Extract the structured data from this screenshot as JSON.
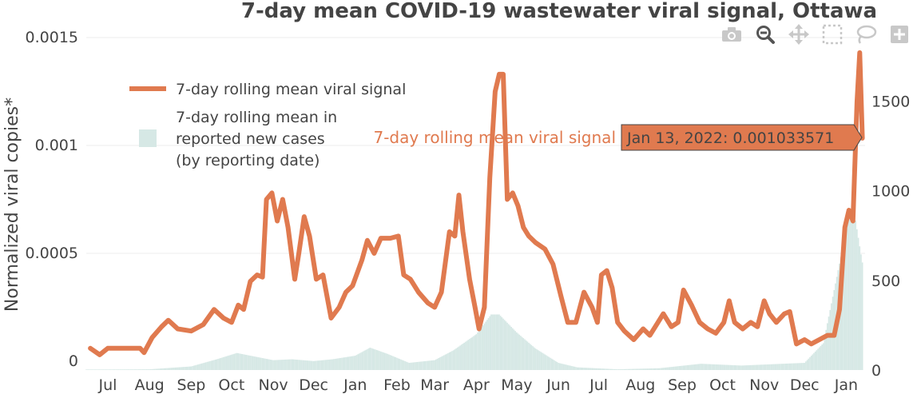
{
  "chart_data": {
    "type": "line",
    "title": "7-day mean COVID-19 wastewater viral signal, Ottawa",
    "ylabel": "Normalized viral copies*",
    "ylim": [
      0,
      0.0015
    ],
    "y_ticks": [
      "0",
      "0.0005",
      "0.001",
      "0.0015"
    ],
    "y_tick_values": [
      0,
      0.0005,
      0.001,
      0.0015
    ],
    "y2lim": [
      0,
      1850
    ],
    "y2_ticks": [
      "0",
      "500",
      "1000",
      "1500"
    ],
    "y2_tick_values": [
      0,
      500,
      1000,
      1500
    ],
    "x_ticks": [
      "Jul",
      "Aug",
      "Sep",
      "Oct",
      "Nov",
      "Dec",
      "Jan",
      "Feb",
      "Mar",
      "Apr",
      "May",
      "Jun",
      "Jul",
      "Aug",
      "Sep",
      "Oct",
      "Nov",
      "Dec",
      "Jan"
    ],
    "x_tick_dates": [
      "2020-07-01",
      "2020-08-01",
      "2020-09-01",
      "2020-10-01",
      "2020-11-01",
      "2020-12-01",
      "2021-01-01",
      "2021-02-01",
      "2021-03-01",
      "2021-04-01",
      "2021-05-01",
      "2021-06-01",
      "2021-07-01",
      "2021-08-01",
      "2021-09-01",
      "2021-10-01",
      "2021-11-01",
      "2021-12-01",
      "2022-01-01"
    ],
    "series": [
      {
        "name": "7-day rolling mean viral signal",
        "axis": "y",
        "color": "#e07a4f",
        "points": [
          [
            "2020-06-18",
            6e-05
          ],
          [
            "2020-06-25",
            3e-05
          ],
          [
            "2020-07-01",
            6e-05
          ],
          [
            "2020-07-15",
            6e-05
          ],
          [
            "2020-07-25",
            6e-05
          ],
          [
            "2020-07-28",
            4e-05
          ],
          [
            "2020-08-03",
            0.00011
          ],
          [
            "2020-08-10",
            0.00016
          ],
          [
            "2020-08-15",
            0.00019
          ],
          [
            "2020-08-22",
            0.00015
          ],
          [
            "2020-09-01",
            0.00014
          ],
          [
            "2020-09-10",
            0.00017
          ],
          [
            "2020-09-18",
            0.00024
          ],
          [
            "2020-09-25",
            0.0002
          ],
          [
            "2020-10-01",
            0.00018
          ],
          [
            "2020-10-06",
            0.00026
          ],
          [
            "2020-10-10",
            0.00024
          ],
          [
            "2020-10-15",
            0.00037
          ],
          [
            "2020-10-20",
            0.0004
          ],
          [
            "2020-10-24",
            0.00039
          ],
          [
            "2020-10-27",
            0.00075
          ],
          [
            "2020-10-31",
            0.00078
          ],
          [
            "2020-11-04",
            0.00065
          ],
          [
            "2020-11-08",
            0.00075
          ],
          [
            "2020-11-12",
            0.00062
          ],
          [
            "2020-11-17",
            0.00038
          ],
          [
            "2020-11-20",
            0.0005
          ],
          [
            "2020-11-24",
            0.00067
          ],
          [
            "2020-11-28",
            0.00058
          ],
          [
            "2020-12-03",
            0.00038
          ],
          [
            "2020-12-08",
            0.0004
          ],
          [
            "2020-12-14",
            0.0002
          ],
          [
            "2020-12-20",
            0.00025
          ],
          [
            "2020-12-25",
            0.00032
          ],
          [
            "2020-12-30",
            0.00035
          ],
          [
            "2021-01-06",
            0.00047
          ],
          [
            "2021-01-10",
            0.00056
          ],
          [
            "2021-01-15",
            0.0005
          ],
          [
            "2021-01-20",
            0.00057
          ],
          [
            "2021-01-27",
            0.00057
          ],
          [
            "2021-02-02",
            0.00058
          ],
          [
            "2021-02-06",
            0.0004
          ],
          [
            "2021-02-11",
            0.00038
          ],
          [
            "2021-02-17",
            0.00032
          ],
          [
            "2021-02-24",
            0.00027
          ],
          [
            "2021-03-01",
            0.00025
          ],
          [
            "2021-03-06",
            0.00032
          ],
          [
            "2021-03-12",
            0.0006
          ],
          [
            "2021-03-16",
            0.00058
          ],
          [
            "2021-03-19",
            0.00077
          ],
          [
            "2021-03-22",
            0.0006
          ],
          [
            "2021-03-27",
            0.00038
          ],
          [
            "2021-03-31",
            0.00025
          ],
          [
            "2021-04-03",
            0.00015
          ],
          [
            "2021-04-07",
            0.00025
          ],
          [
            "2021-04-11",
            0.00085
          ],
          [
            "2021-04-15",
            0.00125
          ],
          [
            "2021-04-18",
            0.00133
          ],
          [
            "2021-04-21",
            0.00133
          ],
          [
            "2021-04-24",
            0.00075
          ],
          [
            "2021-04-28",
            0.00078
          ],
          [
            "2021-05-02",
            0.00072
          ],
          [
            "2021-05-06",
            0.00062
          ],
          [
            "2021-05-10",
            0.00058
          ],
          [
            "2021-05-15",
            0.00055
          ],
          [
            "2021-05-22",
            0.00052
          ],
          [
            "2021-05-28",
            0.00045
          ],
          [
            "2021-06-03",
            0.0003
          ],
          [
            "2021-06-08",
            0.00018
          ],
          [
            "2021-06-14",
            0.00018
          ],
          [
            "2021-06-20",
            0.00032
          ],
          [
            "2021-06-26",
            0.00025
          ],
          [
            "2021-06-30",
            0.00018
          ],
          [
            "2021-07-03",
            0.0004
          ],
          [
            "2021-07-07",
            0.00042
          ],
          [
            "2021-07-11",
            0.00034
          ],
          [
            "2021-07-15",
            0.00018
          ],
          [
            "2021-07-20",
            0.00014
          ],
          [
            "2021-07-27",
            0.0001
          ],
          [
            "2021-08-03",
            0.00015
          ],
          [
            "2021-08-08",
            0.00012
          ],
          [
            "2021-08-14",
            0.00018
          ],
          [
            "2021-08-18",
            0.00022
          ],
          [
            "2021-08-24",
            0.00016
          ],
          [
            "2021-08-29",
            0.00018
          ],
          [
            "2021-09-02",
            0.00033
          ],
          [
            "2021-09-08",
            0.00026
          ],
          [
            "2021-09-14",
            0.00018
          ],
          [
            "2021-09-20",
            0.00015
          ],
          [
            "2021-09-26",
            0.00013
          ],
          [
            "2021-10-02",
            0.00018
          ],
          [
            "2021-10-06",
            0.00028
          ],
          [
            "2021-10-10",
            0.00018
          ],
          [
            "2021-10-16",
            0.00015
          ],
          [
            "2021-10-22",
            0.00018
          ],
          [
            "2021-10-27",
            0.00016
          ],
          [
            "2021-11-01",
            0.00028
          ],
          [
            "2021-11-05",
            0.00022
          ],
          [
            "2021-11-10",
            0.00018
          ],
          [
            "2021-11-16",
            0.00022
          ],
          [
            "2021-11-20",
            0.00023
          ],
          [
            "2021-11-25",
            8e-05
          ],
          [
            "2021-12-01",
            0.0001
          ],
          [
            "2021-12-06",
            8e-05
          ],
          [
            "2021-12-12",
            0.0001
          ],
          [
            "2021-12-18",
            0.00012
          ],
          [
            "2021-12-23",
            0.00012
          ],
          [
            "2021-12-27",
            0.00024
          ],
          [
            "2021-12-31",
            0.00062
          ],
          [
            "2022-01-03",
            0.0007
          ],
          [
            "2022-01-06",
            0.00065
          ],
          [
            "2022-01-09",
            0.0012
          ],
          [
            "2022-01-11",
            0.00143
          ],
          [
            "2022-01-13",
            0.001033571
          ]
        ]
      },
      {
        "name": "7-day rolling mean in reported new cases (by reporting date)",
        "axis": "y2",
        "color": "#d6e8e5",
        "points": [
          [
            "2020-06-15",
            3
          ],
          [
            "2020-07-01",
            3
          ],
          [
            "2020-08-01",
            4
          ],
          [
            "2020-09-01",
            20
          ],
          [
            "2020-09-20",
            60
          ],
          [
            "2020-10-05",
            95
          ],
          [
            "2020-10-15",
            80
          ],
          [
            "2020-11-01",
            55
          ],
          [
            "2020-11-15",
            60
          ],
          [
            "2020-12-01",
            50
          ],
          [
            "2020-12-15",
            60
          ],
          [
            "2021-01-01",
            80
          ],
          [
            "2021-01-12",
            125
          ],
          [
            "2021-01-25",
            90
          ],
          [
            "2021-02-10",
            40
          ],
          [
            "2021-03-01",
            55
          ],
          [
            "2021-03-15",
            110
          ],
          [
            "2021-04-01",
            200
          ],
          [
            "2021-04-12",
            310
          ],
          [
            "2021-04-18",
            310
          ],
          [
            "2021-05-01",
            210
          ],
          [
            "2021-05-15",
            120
          ],
          [
            "2021-06-01",
            40
          ],
          [
            "2021-06-15",
            15
          ],
          [
            "2021-07-15",
            4
          ],
          [
            "2021-08-15",
            10
          ],
          [
            "2021-09-15",
            35
          ],
          [
            "2021-10-15",
            25
          ],
          [
            "2021-11-15",
            35
          ],
          [
            "2021-12-01",
            40
          ],
          [
            "2021-12-15",
            150
          ],
          [
            "2021-12-25",
            520
          ],
          [
            "2022-01-03",
            850
          ],
          [
            "2022-01-07",
            880
          ],
          [
            "2022-01-11",
            690
          ],
          [
            "2022-01-13",
            600
          ]
        ]
      }
    ],
    "hover": {
      "series_label": "7-day rolling mean viral signal",
      "value_text": "Jan 13, 2022: 0.001033571",
      "date": "2022-01-13",
      "value": 0.001033571
    },
    "legend": {
      "placement": "top-left",
      "line_label": "7-day rolling mean viral signal",
      "bar_label_lines": [
        "7-day rolling mean in",
        "reported new cases",
        "(by reporting date)"
      ]
    },
    "grid": true
  },
  "modebar": {
    "buttons": [
      "camera-icon",
      "zoom-icon",
      "pan-icon",
      "box-select-icon",
      "lasso-icon",
      "zoom-in-icon"
    ]
  }
}
